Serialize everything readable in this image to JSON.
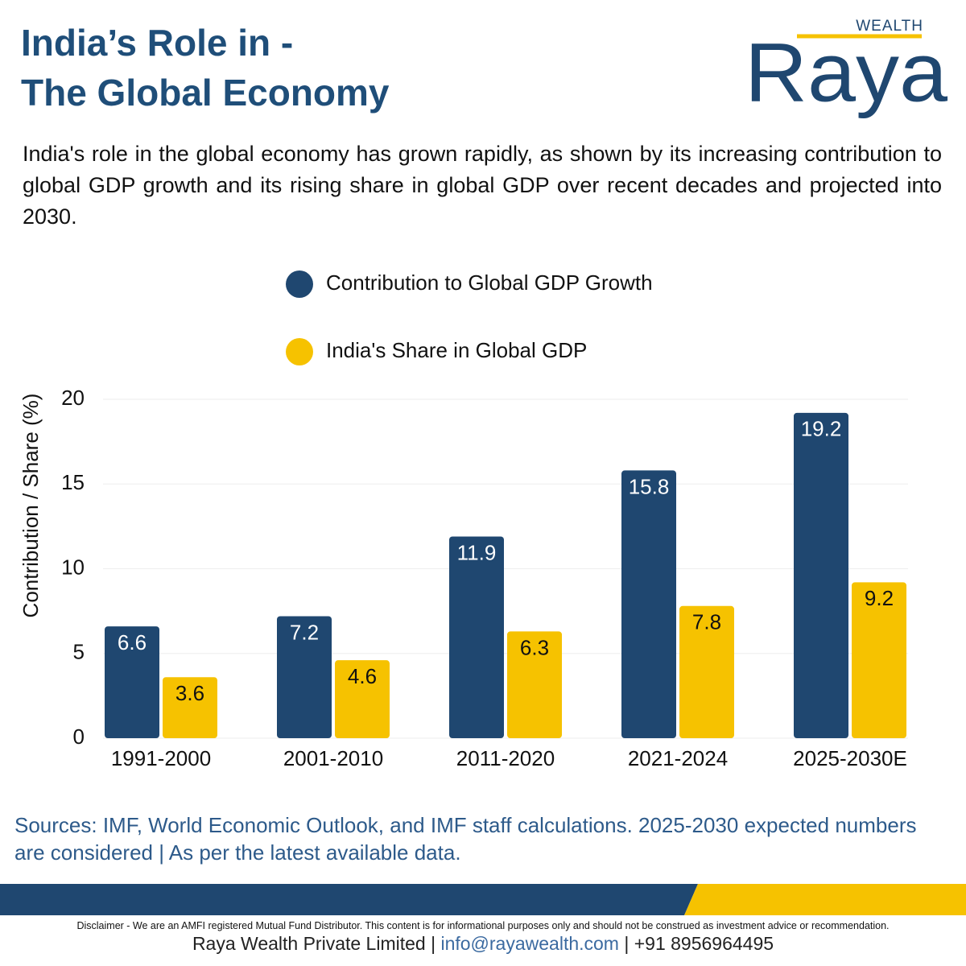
{
  "header": {
    "title_lines": [
      "India’s Role in -",
      "The Global Economy"
    ],
    "description": "India's role in the global economy has grown rapidly, as shown by its increasing contribution to global GDP growth and its rising share in global GDP over recent decades and projected into 2030."
  },
  "logo": {
    "tagline": "WEALTH",
    "name": "Raya"
  },
  "chart_data": {
    "type": "bar",
    "y_label": "Contribution / Share (%)",
    "categories": [
      "1991-2000",
      "2001-2010",
      "2011-2020",
      "2021-2024",
      "2025-2030E"
    ],
    "series": [
      {
        "name": "Contribution to Global GDP Growth",
        "color": "#1f4770",
        "values": [
          6.6,
          7.2,
          11.9,
          15.8,
          19.2
        ]
      },
      {
        "name": "India's Share in Global GDP",
        "color": "#f6c200",
        "values": [
          3.6,
          4.6,
          6.3,
          7.8,
          9.2
        ]
      }
    ],
    "ylim": [
      0,
      20
    ],
    "yticks": [
      0,
      5,
      10,
      15,
      20
    ],
    "grid": true
  },
  "sources": "Sources: IMF, World Economic Outlook, and IMF staff calculations. 2025-2030 expected numbers are considered | As per the latest available data.",
  "disclaimer": "Disclaimer - We are an AMFI registered Mutual Fund Distributor. This content is for informational purposes only and should not be construed as investment advice or recommendation.",
  "footer": {
    "company": "Raya Wealth Private Limited",
    "separator": "|",
    "email": "info@rayawealth.com",
    "phone": "+91 8956964495"
  }
}
